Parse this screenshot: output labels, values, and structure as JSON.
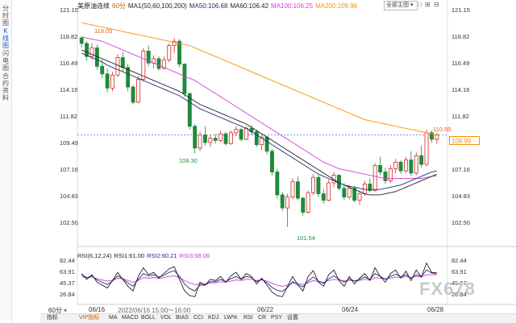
{
  "sidebar": {
    "tabs": [
      {
        "label": "分时图",
        "active": false
      },
      {
        "label": "K线图",
        "active": true
      },
      {
        "label": "闪电图",
        "active": false
      },
      {
        "label": "合约资料",
        "active": false
      }
    ]
  },
  "header": {
    "symbol": "美原油连续",
    "period": "60分",
    "ma_main": "MA1(50,60,100,200)",
    "ma50": "MA50:106.68",
    "ma60": "MA60:106.42",
    "ma100": "MA100:106.25",
    "ma200": "MA200:109.96",
    "dropdown": "全部主图",
    "window_icons": "□ ⊞ ⊟"
  },
  "colors": {
    "up": "#d42a2a",
    "down": "#1f8a3a",
    "ma50": "#1d2f6e",
    "ma60": "#222222",
    "ma100": "#d43fd4",
    "ma200": "#ff8c00",
    "rsi_short": "#222222",
    "rsi_mid": "#1a2a80",
    "rsi_long": "#c83cc8",
    "price_line": "#3a78d8"
  },
  "price_axis": {
    "right": [
      "121.15",
      "118.82",
      "116.49",
      "114.16",
      "111.82",
      "109.49",
      "107.16",
      "104.83",
      "102.50"
    ],
    "left": [
      "121.15",
      "118.82",
      "116.49",
      "114.16",
      "111.82",
      "109.49",
      "107.16",
      "104.83",
      "102.50"
    ]
  },
  "current_price": "109.99",
  "annotations": {
    "high_left": "119.05",
    "low_mid": "108.30",
    "low_min": "101.54",
    "high_right": "110.50"
  },
  "rsi": {
    "label": "RSI(6,12,24)",
    "rsi1": "RSI1:61.00",
    "rsi2": "RSI2:60.21",
    "rsi3": "RSI3:58.06",
    "axis_left": [
      "82.44",
      "63.91",
      "45.37",
      "26.84"
    ],
    "axis_right": [
      "82.44",
      "63.91",
      "45.37",
      "26.84"
    ]
  },
  "footer": {
    "period_select": "60分",
    "info": "2022/06/16 15:00～16:00",
    "dates": [
      "06/16",
      "06/22",
      "06/24",
      "06/28"
    ],
    "indicator_label": "指标",
    "buttons": [
      "VIP指标",
      "MA",
      "MACD",
      "BOLL",
      "VOL",
      "BIAS",
      "CCI",
      "KDJ",
      "LW%",
      "RSI",
      "CR",
      "PSY",
      "设置"
    ]
  },
  "watermark": "FX678",
  "chart_data": {
    "type": "candlestick",
    "ylim": [
      100.5,
      121.5
    ],
    "candles": [
      [
        118.9,
        119.05,
        118.0,
        118.4
      ],
      [
        118.4,
        118.6,
        116.8,
        117.2
      ],
      [
        117.2,
        118.4,
        116.9,
        118.0
      ],
      [
        118.0,
        118.3,
        116.0,
        116.3
      ],
      [
        116.3,
        116.9,
        115.2,
        115.6
      ],
      [
        115.6,
        116.1,
        113.9,
        114.3
      ],
      [
        114.3,
        115.8,
        114.0,
        115.5
      ],
      [
        115.5,
        117.4,
        115.3,
        117.1
      ],
      [
        117.1,
        117.6,
        115.8,
        116.2
      ],
      [
        116.2,
        116.5,
        114.0,
        114.4
      ],
      [
        114.4,
        114.6,
        112.8,
        113.0
      ],
      [
        113.0,
        115.4,
        112.9,
        115.1
      ],
      [
        115.1,
        118.0,
        114.9,
        117.7
      ],
      [
        117.7,
        118.2,
        116.3,
        116.6
      ],
      [
        116.6,
        117.3,
        116.1,
        117.0
      ],
      [
        117.0,
        117.2,
        115.9,
        116.1
      ],
      [
        116.1,
        117.2,
        116.0,
        116.9
      ],
      [
        116.9,
        118.4,
        116.7,
        118.2
      ],
      [
        118.2,
        118.9,
        117.5,
        118.6
      ],
      [
        118.6,
        118.8,
        116.2,
        116.5
      ],
      [
        116.5,
        116.6,
        113.5,
        113.8
      ],
      [
        113.8,
        113.9,
        110.5,
        110.8
      ],
      [
        110.8,
        111.0,
        108.3,
        108.8
      ],
      [
        108.8,
        110.3,
        108.5,
        110.0
      ],
      [
        110.0,
        110.8,
        109.0,
        109.3
      ],
      [
        109.3,
        110.0,
        108.9,
        109.7
      ],
      [
        109.7,
        110.1,
        109.2,
        109.5
      ],
      [
        109.5,
        110.4,
        109.3,
        110.1
      ],
      [
        110.1,
        110.3,
        109.0,
        109.2
      ],
      [
        109.2,
        110.4,
        109.1,
        110.2
      ],
      [
        110.2,
        110.8,
        109.9,
        110.5
      ],
      [
        110.5,
        110.6,
        109.4,
        109.6
      ],
      [
        109.6,
        110.8,
        109.5,
        110.6
      ],
      [
        110.6,
        110.9,
        110.0,
        110.3
      ],
      [
        110.3,
        110.5,
        108.9,
        109.1
      ],
      [
        109.1,
        110.0,
        108.6,
        109.8
      ],
      [
        109.8,
        109.9,
        108.2,
        108.5
      ],
      [
        108.5,
        108.7,
        106.3,
        106.6
      ],
      [
        106.6,
        106.9,
        104.2,
        104.5
      ],
      [
        104.5,
        104.8,
        103.0,
        103.3
      ],
      [
        103.3,
        104.6,
        101.54,
        104.3
      ],
      [
        104.3,
        106.0,
        104.1,
        105.7
      ],
      [
        105.7,
        106.2,
        104.0,
        104.2
      ],
      [
        104.2,
        104.3,
        102.6,
        102.9
      ],
      [
        102.9,
        104.9,
        102.8,
        104.7
      ],
      [
        104.7,
        106.4,
        104.5,
        106.1
      ],
      [
        106.1,
        106.3,
        104.3,
        104.6
      ],
      [
        104.6,
        105.0,
        103.7,
        104.0
      ],
      [
        104.0,
        105.9,
        103.9,
        105.6
      ],
      [
        105.6,
        106.6,
        105.2,
        106.3
      ],
      [
        106.3,
        106.4,
        104.9,
        105.1
      ],
      [
        105.1,
        105.6,
        104.0,
        104.3
      ],
      [
        104.3,
        105.4,
        104.1,
        105.1
      ],
      [
        105.1,
        105.3,
        103.8,
        104.0
      ],
      [
        104.0,
        104.9,
        103.6,
        104.6
      ],
      [
        104.6,
        105.8,
        104.4,
        105.5
      ],
      [
        105.5,
        106.0,
        104.7,
        104.9
      ],
      [
        104.9,
        107.4,
        104.8,
        107.2
      ],
      [
        107.2,
        108.0,
        106.3,
        106.6
      ],
      [
        106.6,
        107.0,
        105.5,
        105.8
      ],
      [
        105.8,
        107.2,
        105.6,
        106.9
      ],
      [
        106.9,
        107.8,
        106.5,
        107.5
      ],
      [
        107.5,
        107.7,
        106.4,
        106.7
      ],
      [
        106.7,
        108.0,
        106.5,
        107.7
      ],
      [
        107.7,
        108.5,
        106.2,
        106.5
      ],
      [
        106.5,
        108.4,
        106.3,
        108.1
      ],
      [
        108.1,
        109.0,
        107.0,
        107.3
      ],
      [
        107.3,
        110.5,
        107.1,
        110.2
      ],
      [
        110.2,
        110.4,
        109.3,
        109.6
      ],
      [
        109.6,
        110.2,
        109.2,
        109.99
      ]
    ],
    "ma50": [
      117.5,
      117.3,
      117.1,
      116.9,
      116.7,
      116.4,
      116.2,
      116.0,
      115.8,
      115.6,
      115.4,
      115.2,
      115.0,
      114.8,
      114.6,
      114.4,
      114.2,
      114.0,
      113.8,
      113.6,
      113.3,
      113.0,
      112.7,
      112.4,
      112.2,
      112.0,
      111.8,
      111.6,
      111.4,
      111.2,
      111.0,
      110.8,
      110.6,
      110.3,
      110.0,
      109.7,
      109.4,
      109.1,
      108.8,
      108.5,
      108.2,
      107.9,
      107.6,
      107.3,
      107.0,
      106.7,
      106.4,
      106.2,
      106.0,
      105.8,
      105.6,
      105.4,
      105.3,
      105.2,
      105.1,
      105.0,
      105.0,
      105.0,
      105.0,
      105.1,
      105.2,
      105.3,
      105.4,
      105.6,
      105.8,
      106.0,
      106.2,
      106.4,
      106.6,
      106.7
    ],
    "ma60": [
      117.8,
      117.6,
      117.4,
      117.2,
      117.0,
      116.8,
      116.6,
      116.4,
      116.2,
      116.0,
      115.8,
      115.6,
      115.4,
      115.2,
      115.0,
      114.8,
      114.6,
      114.4,
      114.2,
      114.0,
      113.7,
      113.4,
      113.1,
      112.8,
      112.6,
      112.4,
      112.2,
      112.0,
      111.8,
      111.6,
      111.4,
      111.2,
      111.0,
      110.7,
      110.4,
      110.1,
      109.8,
      109.5,
      109.2,
      108.9,
      108.6,
      108.3,
      108.0,
      107.7,
      107.4,
      107.1,
      106.8,
      106.5,
      106.2,
      105.9,
      105.6,
      105.4,
      105.2,
      105.0,
      104.8,
      104.6,
      104.5,
      104.5,
      104.5,
      104.6,
      104.7,
      104.8,
      105.0,
      105.2,
      105.4,
      105.6,
      105.8,
      106.0,
      106.2,
      106.4
    ],
    "ma100": [
      119.0,
      118.9,
      118.8,
      118.7,
      118.6,
      118.4,
      118.2,
      118.0,
      117.8,
      117.6,
      117.4,
      117.2,
      117.0,
      116.8,
      116.6,
      116.4,
      116.2,
      116.0,
      115.8,
      115.6,
      115.4,
      115.2,
      115.0,
      114.7,
      114.4,
      114.1,
      113.8,
      113.5,
      113.2,
      112.9,
      112.6,
      112.3,
      112.0,
      111.7,
      111.4,
      111.1,
      110.8,
      110.5,
      110.2,
      109.9,
      109.6,
      109.3,
      109.0,
      108.7,
      108.4,
      108.1,
      107.8,
      107.5,
      107.3,
      107.1,
      106.9,
      106.8,
      106.7,
      106.6,
      106.5,
      106.4,
      106.3,
      106.2,
      106.1,
      106.0,
      106.0,
      106.0,
      106.0,
      106.0,
      106.0,
      106.0,
      106.0,
      106.1,
      106.2,
      106.25
    ],
    "ma200": [
      120.3,
      120.2,
      120.1,
      120.0,
      119.9,
      119.8,
      119.7,
      119.6,
      119.5,
      119.4,
      119.3,
      119.2,
      119.1,
      119.0,
      118.9,
      118.8,
      118.7,
      118.6,
      118.5,
      118.4,
      118.3,
      118.2,
      118.0,
      117.8,
      117.6,
      117.4,
      117.2,
      117.0,
      116.8,
      116.6,
      116.4,
      116.2,
      116.0,
      115.8,
      115.6,
      115.4,
      115.2,
      115.0,
      114.8,
      114.6,
      114.4,
      114.2,
      114.0,
      113.8,
      113.6,
      113.4,
      113.2,
      113.0,
      112.8,
      112.6,
      112.4,
      112.2,
      112.0,
      111.8,
      111.6,
      111.4,
      111.3,
      111.2,
      111.1,
      111.0,
      110.9,
      110.8,
      110.7,
      110.6,
      110.5,
      110.4,
      110.3,
      110.2,
      110.1,
      109.96
    ],
    "rsi_ylim": [
      15,
      90
    ],
    "rsi1": [
      60,
      50,
      58,
      45,
      40,
      35,
      48,
      62,
      50,
      38,
      30,
      55,
      70,
      58,
      62,
      52,
      60,
      68,
      72,
      50,
      30,
      22,
      20,
      45,
      40,
      50,
      48,
      55,
      45,
      56,
      62,
      50,
      60,
      55,
      42,
      52,
      40,
      28,
      22,
      20,
      38,
      55,
      40,
      30,
      55,
      65,
      45,
      38,
      58,
      66,
      48,
      38,
      55,
      42,
      52,
      60,
      48,
      70,
      55,
      45,
      60,
      66,
      52,
      64,
      48,
      66,
      54,
      78,
      62,
      61
    ],
    "rsi2": [
      58,
      53,
      56,
      49,
      45,
      41,
      47,
      56,
      51,
      44,
      38,
      50,
      60,
      56,
      58,
      54,
      57,
      62,
      65,
      55,
      42,
      34,
      30,
      40,
      40,
      46,
      46,
      50,
      46,
      51,
      55,
      50,
      55,
      53,
      46,
      50,
      44,
      36,
      31,
      29,
      36,
      46,
      41,
      37,
      47,
      54,
      47,
      43,
      51,
      56,
      50,
      45,
      51,
      47,
      50,
      54,
      50,
      60,
      55,
      50,
      55,
      59,
      54,
      58,
      52,
      58,
      55,
      66,
      61,
      60.21
    ],
    "rsi3": [
      55,
      53,
      54,
      51,
      49,
      47,
      48,
      52,
      51,
      48,
      45,
      48,
      53,
      52,
      53,
      52,
      53,
      55,
      56,
      53,
      48,
      44,
      41,
      42,
      42,
      44,
      44,
      46,
      45,
      47,
      49,
      48,
      50,
      50,
      48,
      49,
      47,
      43,
      40,
      38,
      40,
      44,
      43,
      41,
      44,
      48,
      46,
      45,
      48,
      50,
      49,
      47,
      48,
      47,
      48,
      50,
      49,
      53,
      52,
      51,
      52,
      54,
      53,
      55,
      53,
      55,
      54,
      58,
      58,
      58.06
    ]
  }
}
